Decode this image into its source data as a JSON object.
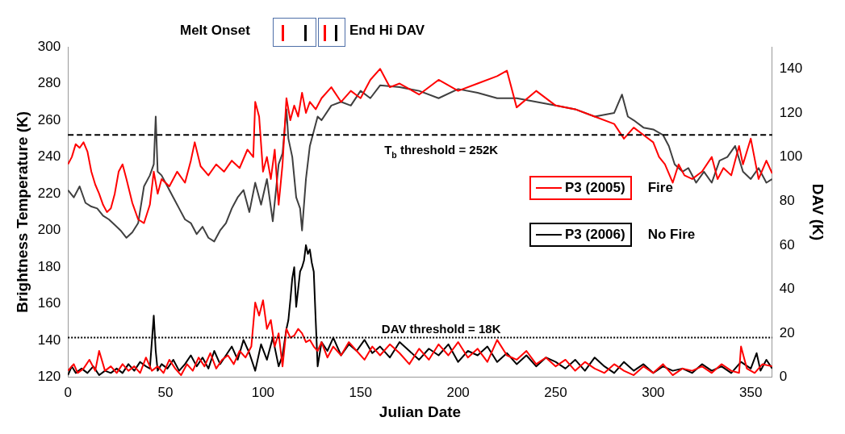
{
  "chart_data": {
    "type": "line",
    "xlabel": "Julian Date",
    "ylabel": "Brightness Temperature (K)",
    "y2label": "DAV (K)",
    "xlim": [
      0,
      361
    ],
    "xticks": [
      0,
      50,
      100,
      150,
      200,
      250,
      300,
      350
    ],
    "ylim": [
      120,
      300
    ],
    "yticks": [
      120,
      140,
      160,
      180,
      200,
      220,
      240,
      260,
      280,
      300
    ],
    "y2lim": [
      0,
      150
    ],
    "y2ticks": [
      0,
      20,
      40,
      60,
      80,
      100,
      120,
      140
    ],
    "grid": false,
    "legend": "right",
    "marker": "none",
    "line_style": "solid",
    "ref_lines": [
      {
        "axis": "y",
        "value": 252,
        "label": "T$_{b}$ threshold = 252K",
        "color": "#000000",
        "line_style": "dashed"
      },
      {
        "axis": "y2",
        "value": 18,
        "label": "DAV threshold = 18K",
        "color": "#000000",
        "line_style": "dotted"
      }
    ],
    "annotations": [
      "Melt Onset",
      "End Hi DAV",
      "Fire",
      "No Fire"
    ],
    "series": [
      {
        "color": "#ff0000",
        "x": [
          0,
          2,
          4,
          6,
          8,
          10,
          12,
          14,
          16,
          18,
          20,
          22,
          24,
          26,
          28,
          30,
          33,
          36,
          39,
          42,
          44,
          46,
          48,
          52,
          56,
          60,
          63,
          65,
          68,
          72,
          76,
          80,
          84,
          88,
          92,
          95,
          96,
          98,
          100,
          102,
          104,
          106,
          108,
          110,
          112,
          114,
          116,
          118,
          120,
          122,
          124,
          127,
          130,
          135,
          140,
          145,
          150,
          155,
          160,
          165,
          170,
          180,
          190,
          200,
          210,
          220,
          225,
          230,
          240,
          250,
          260,
          270,
          280,
          285,
          290,
          295,
          300,
          303,
          306,
          310,
          313,
          316,
          320,
          325,
          330,
          333,
          336,
          340,
          344,
          346,
          350,
          354,
          358,
          361
        ],
        "values": [
          236,
          240,
          247,
          245,
          248,
          243,
          232,
          225,
          220,
          214,
          210,
          212,
          220,
          232,
          236,
          228,
          215,
          206,
          204,
          214,
          232,
          220,
          228,
          224,
          232,
          226,
          238,
          248,
          235,
          230,
          236,
          232,
          238,
          234,
          244,
          240,
          270,
          262,
          232,
          240,
          228,
          244,
          214,
          236,
          272,
          260,
          268,
          262,
          275,
          264,
          270,
          266,
          272,
          278,
          270,
          276,
          272,
          282,
          288,
          278,
          280,
          274,
          282,
          276,
          280,
          284,
          287,
          267,
          276,
          268,
          266,
          262,
          258,
          250,
          256,
          252,
          248,
          240,
          236,
          226,
          236,
          230,
          228,
          232,
          240,
          228,
          234,
          230,
          246,
          236,
          250,
          228,
          238,
          231
        ]
      },
      {
        "color": "#404040",
        "x": [
          0,
          3,
          6,
          9,
          12,
          15,
          18,
          21,
          24,
          27,
          30,
          33,
          36,
          39,
          42,
          44,
          45,
          46,
          48,
          51,
          54,
          57,
          60,
          63,
          66,
          69,
          72,
          75,
          78,
          81,
          84,
          87,
          90,
          93,
          96,
          99,
          102,
          105,
          108,
          110,
          112,
          113,
          115,
          117,
          119,
          120,
          122,
          124,
          126,
          128,
          130,
          135,
          140,
          145,
          150,
          155,
          160,
          170,
          180,
          190,
          200,
          210,
          220,
          230,
          240,
          250,
          260,
          270,
          280,
          284,
          287,
          290,
          295,
          300,
          305,
          308,
          311,
          315,
          318,
          322,
          326,
          330,
          334,
          338,
          342,
          346,
          350,
          354,
          358,
          361
        ],
        "values": [
          222,
          218,
          224,
          215,
          213,
          212,
          208,
          206,
          203,
          200,
          196,
          199,
          204,
          224,
          230,
          236,
          262,
          232,
          230,
          224,
          218,
          212,
          206,
          204,
          198,
          202,
          196,
          194,
          200,
          204,
          212,
          218,
          222,
          210,
          226,
          214,
          228,
          205,
          236,
          242,
          266,
          250,
          240,
          218,
          212,
          200,
          228,
          246,
          254,
          262,
          260,
          268,
          270,
          268,
          276,
          272,
          279,
          278,
          276,
          272,
          277,
          275,
          272,
          272,
          270,
          268,
          266,
          262,
          264,
          274,
          262,
          260,
          256,
          255,
          252,
          246,
          236,
          232,
          234,
          226,
          232,
          226,
          238,
          240,
          246,
          232,
          228,
          234,
          226,
          228
        ]
      },
      {
        "name": "P3 (2005)",
        "color": "#ff0000",
        "axis": "y2",
        "x": [
          0,
          3,
          5,
          8,
          11,
          14,
          16,
          19,
          22,
          25,
          28,
          31,
          34,
          37,
          40,
          43,
          46,
          49,
          52,
          55,
          58,
          61,
          64,
          67,
          70,
          73,
          76,
          79,
          82,
          85,
          88,
          91,
          94,
          96,
          98,
          100,
          102,
          104,
          106,
          108,
          110,
          112,
          114,
          116,
          118,
          120,
          122,
          124,
          126,
          128,
          130,
          133,
          136,
          140,
          144,
          148,
          152,
          156,
          160,
          165,
          170,
          175,
          180,
          185,
          190,
          195,
          200,
          205,
          210,
          215,
          220,
          225,
          230,
          235,
          240,
          245,
          250,
          255,
          260,
          265,
          270,
          275,
          280,
          285,
          290,
          295,
          300,
          305,
          310,
          315,
          320,
          325,
          330,
          335,
          340,
          344,
          345,
          348,
          352,
          356,
          361
        ],
        "values": [
          3,
          6,
          2,
          4,
          8,
          3,
          12,
          3,
          5,
          2,
          6,
          3,
          5,
          2,
          9,
          3,
          5,
          2,
          8,
          4,
          1,
          6,
          3,
          9,
          5,
          11,
          4,
          8,
          10,
          6,
          12,
          9,
          14,
          34,
          28,
          35,
          22,
          26,
          14,
          20,
          5,
          22,
          18,
          19,
          22,
          20,
          16,
          17,
          14,
          12,
          16,
          9,
          14,
          10,
          16,
          12,
          8,
          14,
          10,
          15,
          11,
          6,
          13,
          8,
          15,
          10,
          16,
          9,
          13,
          7,
          17,
          10,
          8,
          12,
          6,
          9,
          5,
          8,
          3,
          7,
          4,
          2,
          6,
          3,
          1,
          5,
          2,
          6,
          1,
          4,
          3,
          5,
          2,
          6,
          3,
          2,
          14,
          4,
          2,
          6,
          5
        ]
      },
      {
        "name": "P3 (2006)",
        "color": "#000000",
        "axis": "y2",
        "x": [
          0,
          2,
          4,
          7,
          10,
          13,
          16,
          19,
          22,
          25,
          28,
          31,
          34,
          37,
          40,
          42,
          44,
          45,
          46,
          48,
          51,
          54,
          57,
          60,
          63,
          66,
          69,
          72,
          75,
          78,
          81,
          84,
          87,
          90,
          93,
          96,
          99,
          102,
          105,
          108,
          110,
          112,
          113,
          114,
          115,
          116,
          117,
          118,
          119,
          120,
          121,
          122,
          123,
          124,
          125,
          126,
          127,
          128,
          130,
          133,
          136,
          140,
          144,
          148,
          152,
          156,
          160,
          165,
          170,
          175,
          180,
          185,
          190,
          195,
          200,
          205,
          210,
          215,
          220,
          225,
          230,
          235,
          240,
          245,
          250,
          255,
          260,
          265,
          270,
          275,
          280,
          285,
          290,
          295,
          300,
          305,
          310,
          315,
          320,
          325,
          330,
          335,
          340,
          345,
          350,
          353,
          355,
          358,
          361
        ],
        "values": [
          1,
          5,
          2,
          4,
          2,
          5,
          1,
          3,
          2,
          4,
          2,
          6,
          3,
          7,
          5,
          4,
          28,
          12,
          3,
          6,
          4,
          8,
          3,
          6,
          10,
          5,
          9,
          4,
          12,
          6,
          10,
          14,
          8,
          17,
          11,
          3,
          15,
          8,
          18,
          5,
          10,
          22,
          26,
          35,
          45,
          50,
          32,
          40,
          48,
          50,
          53,
          60,
          56,
          58,
          52,
          48,
          26,
          5,
          16,
          12,
          18,
          10,
          15,
          12,
          17,
          11,
          14,
          9,
          16,
          12,
          8,
          13,
          10,
          15,
          7,
          12,
          10,
          14,
          7,
          11,
          6,
          10,
          5,
          9,
          7,
          4,
          8,
          3,
          9,
          5,
          2,
          7,
          3,
          6,
          2,
          5,
          3,
          4,
          2,
          6,
          3,
          5,
          2,
          7,
          4,
          11,
          3,
          8,
          4
        ]
      }
    ]
  }
}
